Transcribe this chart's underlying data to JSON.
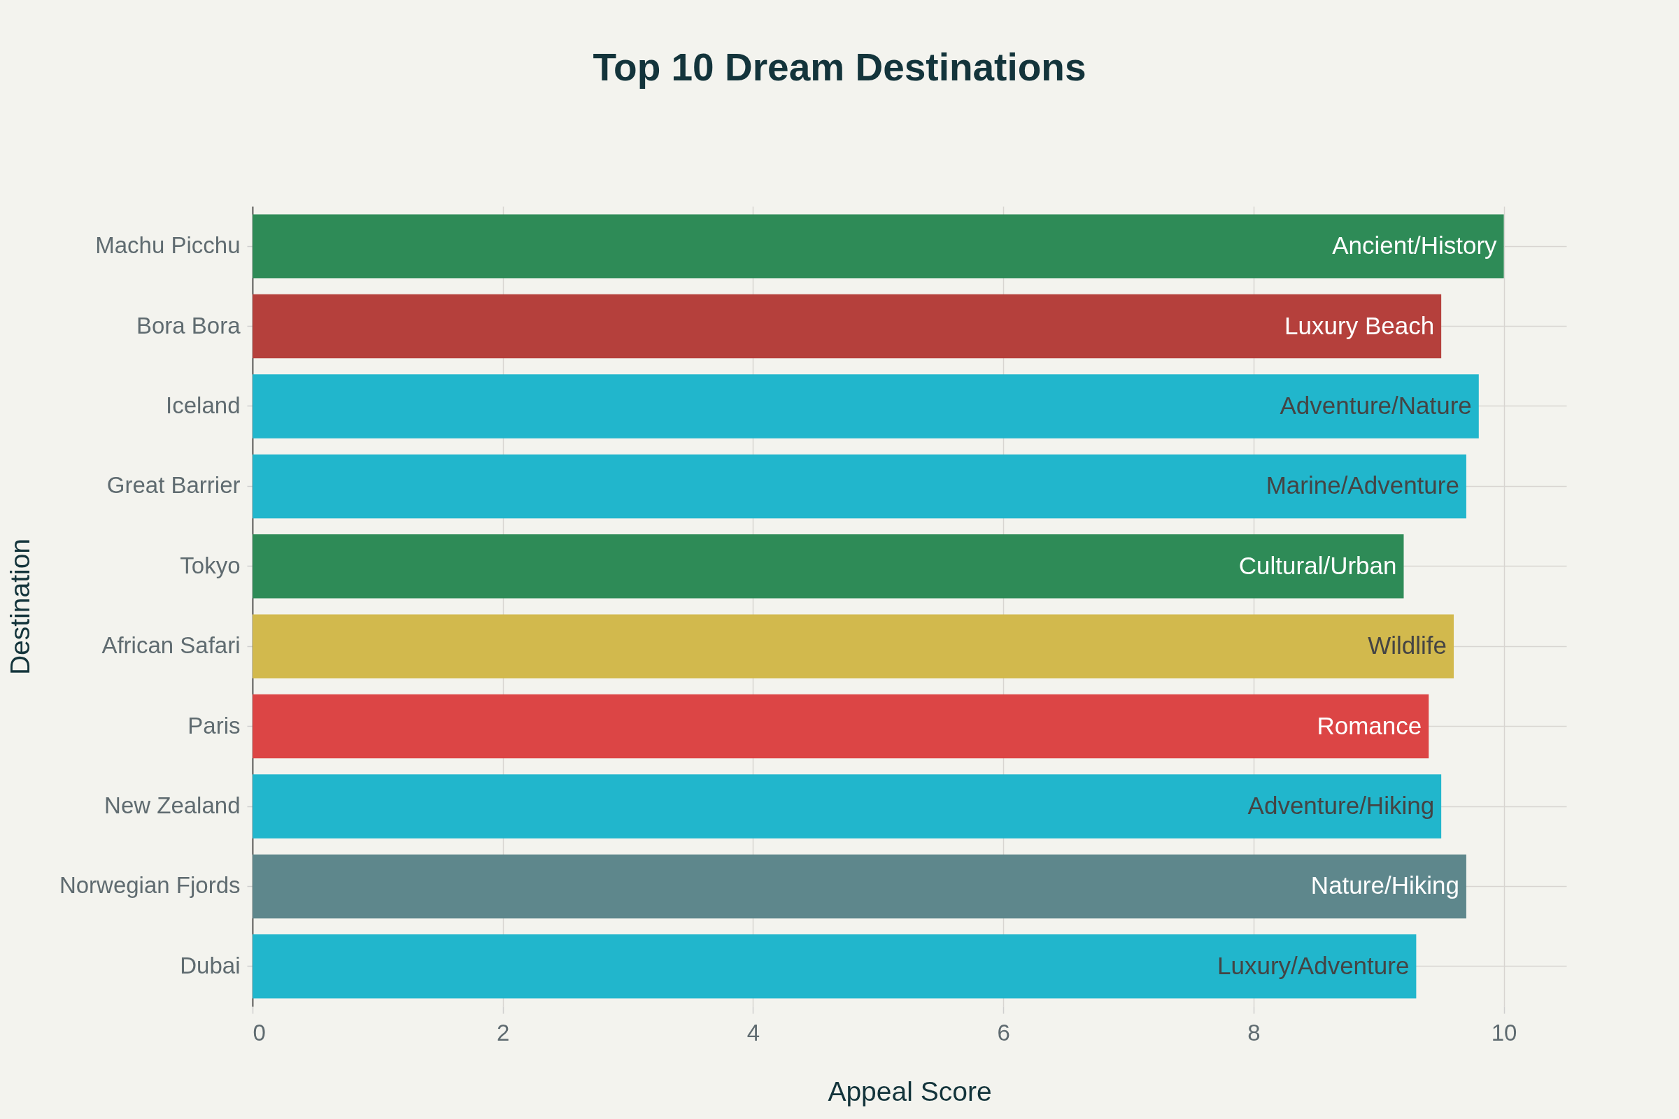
{
  "chart_data": {
    "type": "bar",
    "orientation": "horizontal",
    "title": "Top 10 Dream Destinations",
    "xlabel": "Appeal Score",
    "ylabel": "Destination",
    "categories": [
      "Machu Picchu",
      "Bora Bora",
      "Iceland",
      "Great Barrier",
      "Tokyo",
      "African Safari",
      "Paris",
      "New Zealand",
      "Norwegian Fjords",
      "Dubai"
    ],
    "values": [
      10.0,
      9.5,
      9.8,
      9.7,
      9.2,
      9.6,
      9.4,
      9.5,
      9.7,
      9.3
    ],
    "colors": [
      "#2e8b57",
      "#b5403c",
      "#21b6cc",
      "#21b6cc",
      "#2e8b57",
      "#d2b94d",
      "#dc4545",
      "#21b6cc",
      "#5e878c",
      "#21b6cc"
    ],
    "value_labels": [
      "Ancient/History",
      "Luxury Beach",
      "Adventure/Nature",
      "Marine/Adventure",
      "Cultural/Urban",
      "Wildlife",
      "Romance",
      "Adventure/Hiking",
      "Nature/Hiking",
      "Luxury/Adventure"
    ],
    "xlim": [
      0,
      10.5
    ],
    "xticks": [
      0,
      2,
      4,
      6,
      8,
      10
    ],
    "grid": true
  }
}
